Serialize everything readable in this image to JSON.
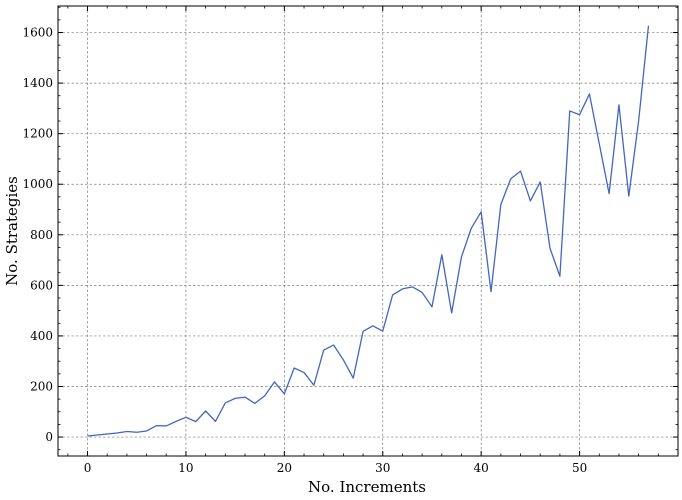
{
  "chart_data": {
    "type": "line",
    "title": "",
    "xlabel": "No. Increments",
    "ylabel": "No. Strategies",
    "xlim": [
      -3,
      60
    ],
    "ylim": [
      -75,
      1705
    ],
    "x_ticks": [
      0,
      10,
      20,
      30,
      40,
      50
    ],
    "y_ticks": [
      0,
      200,
      400,
      600,
      800,
      1000,
      1200,
      1400,
      1600
    ],
    "grid": true,
    "legend": "none",
    "series": [
      {
        "color": "#4166c0",
        "x": [
          0,
          1,
          2,
          3,
          4,
          5,
          6,
          7,
          8,
          9,
          10,
          11,
          12,
          13,
          14,
          15,
          16,
          17,
          18,
          19,
          20,
          21,
          22,
          23,
          24,
          25,
          26,
          27,
          28,
          29,
          30,
          31,
          32,
          33,
          34,
          35,
          36,
          37,
          38,
          39,
          40,
          41,
          42,
          43,
          44,
          45,
          46,
          47,
          48,
          49,
          50,
          51,
          52,
          53,
          54,
          55,
          56,
          57
        ],
        "y": [
          4,
          8,
          12,
          16,
          22,
          19,
          24,
          45,
          44,
          62,
          78,
          61,
          103,
          62,
          135,
          153,
          158,
          133,
          163,
          218,
          171,
          273,
          255,
          205,
          344,
          364,
          305,
          233,
          418,
          440,
          419,
          562,
          586,
          594,
          572,
          515,
          721,
          491,
          713,
          826,
          891,
          575,
          920,
          1021,
          1052,
          934,
          1009,
          746,
          636,
          1290,
          1275,
          1357,
          1160,
          963,
          1314,
          953,
          1251,
          1627
        ]
      }
    ]
  }
}
